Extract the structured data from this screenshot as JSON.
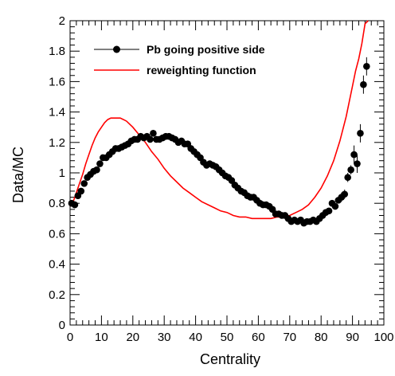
{
  "chart_data": {
    "type": "scatter",
    "title": "",
    "xlabel": "Centrality",
    "ylabel": "Data/MC",
    "xlim": [
      0,
      100
    ],
    "ylim": [
      0,
      2
    ],
    "x_ticks": [
      "0",
      "10",
      "20",
      "30",
      "40",
      "50",
      "60",
      "70",
      "80",
      "90",
      "100"
    ],
    "y_ticks": [
      "0",
      "0.2",
      "0.4",
      "0.6",
      "0.8",
      "1",
      "1.2",
      "1.4",
      "1.6",
      "1.8",
      "2"
    ],
    "grid": false,
    "legend_position": "top-left",
    "series": [
      {
        "name": "Pb going positive side",
        "type": "scatter",
        "color": "#000000",
        "x": [
          0.5,
          1.5,
          2.5,
          3.5,
          4.5,
          5.5,
          6.5,
          7.5,
          8.5,
          9.5,
          10.5,
          11.5,
          12.5,
          13.5,
          14.5,
          15.5,
          16.5,
          17.5,
          18.5,
          19.5,
          20.5,
          21.5,
          22.5,
          23.5,
          24.5,
          25.5,
          26.5,
          27.5,
          28.5,
          29.5,
          30.5,
          31.5,
          32.5,
          33.5,
          34.5,
          35.5,
          36.5,
          37.5,
          38.5,
          39.5,
          40.5,
          41.5,
          42.5,
          43.5,
          44.5,
          45.5,
          46.5,
          47.5,
          48.5,
          49.5,
          50.5,
          51.5,
          52.5,
          53.5,
          54.5,
          55.5,
          56.5,
          57.5,
          58.5,
          59.5,
          60.5,
          61.5,
          62.5,
          63.5,
          64.5,
          65.5,
          66.5,
          67.5,
          68.5,
          69.5,
          70.5,
          71.5,
          72.5,
          73.5,
          74.5,
          75.5,
          76.5,
          77.5,
          78.5,
          79.5,
          80.5,
          81.5,
          82.5,
          83.5,
          84.5,
          85.5,
          86.5,
          87.5,
          88.5,
          89.5,
          90.5,
          91.5,
          92.5,
          93.5,
          94.5
        ],
        "y": [
          0.8,
          0.79,
          0.85,
          0.88,
          0.93,
          0.97,
          0.99,
          1.01,
          1.02,
          1.06,
          1.1,
          1.1,
          1.12,
          1.14,
          1.16,
          1.16,
          1.17,
          1.18,
          1.19,
          1.21,
          1.22,
          1.22,
          1.24,
          1.23,
          1.24,
          1.22,
          1.26,
          1.22,
          1.22,
          1.23,
          1.24,
          1.24,
          1.23,
          1.22,
          1.2,
          1.21,
          1.19,
          1.19,
          1.16,
          1.14,
          1.12,
          1.1,
          1.07,
          1.05,
          1.06,
          1.05,
          1.04,
          1.02,
          1.0,
          0.98,
          0.97,
          0.95,
          0.92,
          0.9,
          0.88,
          0.87,
          0.85,
          0.84,
          0.84,
          0.82,
          0.8,
          0.79,
          0.79,
          0.78,
          0.76,
          0.73,
          0.73,
          0.72,
          0.72,
          0.7,
          0.68,
          0.69,
          0.68,
          0.69,
          0.67,
          0.68,
          0.68,
          0.69,
          0.68,
          0.7,
          0.72,
          0.74,
          0.75,
          0.8,
          0.78,
          0.82,
          0.84,
          0.86,
          0.97,
          1.02,
          1.12,
          1.06,
          1.26,
          1.58,
          1.7
        ]
      },
      {
        "name": "reweighting function",
        "type": "line",
        "color": "#ff0000",
        "x": [
          0,
          1,
          2,
          3,
          4,
          5,
          6,
          7,
          8,
          9,
          10,
          11,
          12,
          13,
          14,
          15,
          16,
          17,
          18,
          19,
          20,
          22,
          24,
          26,
          28,
          30,
          32,
          34,
          36,
          38,
          40,
          42,
          44,
          46,
          48,
          50,
          52,
          54,
          56,
          58,
          60,
          62,
          64,
          66,
          68,
          70,
          72,
          74,
          76,
          78,
          80,
          82,
          84,
          86,
          88,
          90,
          91,
          92,
          93,
          94,
          95
        ],
        "y": [
          0.78,
          0.81,
          0.87,
          0.93,
          0.99,
          1.06,
          1.12,
          1.18,
          1.23,
          1.27,
          1.3,
          1.33,
          1.35,
          1.36,
          1.36,
          1.36,
          1.36,
          1.35,
          1.34,
          1.32,
          1.3,
          1.25,
          1.2,
          1.14,
          1.09,
          1.03,
          0.98,
          0.94,
          0.9,
          0.87,
          0.84,
          0.81,
          0.79,
          0.77,
          0.75,
          0.74,
          0.72,
          0.71,
          0.71,
          0.7,
          0.7,
          0.7,
          0.7,
          0.71,
          0.71,
          0.72,
          0.74,
          0.76,
          0.79,
          0.84,
          0.9,
          0.98,
          1.08,
          1.21,
          1.37,
          1.57,
          1.67,
          1.75,
          1.85,
          1.98,
          2.0
        ]
      }
    ]
  }
}
